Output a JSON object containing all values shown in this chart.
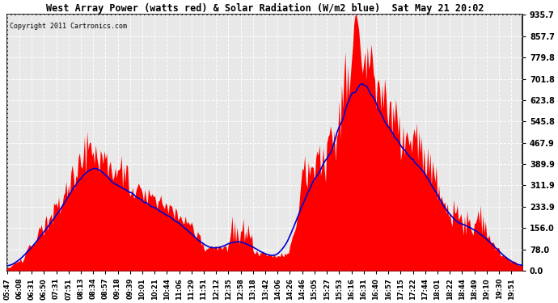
{
  "title": "West Array Power (watts red) & Solar Radiation (W/m2 blue)  Sat May 21 20:02",
  "copyright": "Copyright 2011 Cartronics.com",
  "ymax": 935.7,
  "yticks": [
    0.0,
    78.0,
    156.0,
    233.9,
    311.9,
    389.9,
    467.9,
    545.8,
    623.8,
    701.8,
    779.8,
    857.7,
    935.7
  ],
  "bg_color": "#ffffff",
  "plot_bg": "#ffffff",
  "red_color": "#ff0000",
  "blue_color": "#0000cc",
  "grid_color": "#aaaaaa",
  "xtick_labels": [
    "05:47",
    "06:08",
    "06:31",
    "06:50",
    "07:31",
    "07:51",
    "08:13",
    "08:34",
    "08:57",
    "09:18",
    "09:39",
    "10:01",
    "10:21",
    "10:44",
    "11:06",
    "11:29",
    "11:51",
    "12:12",
    "12:35",
    "12:58",
    "13:18",
    "13:42",
    "14:06",
    "14:26",
    "14:46",
    "15:05",
    "15:27",
    "15:53",
    "16:16",
    "16:31",
    "16:40",
    "16:57",
    "17:15",
    "17:22",
    "17:44",
    "18:01",
    "18:22",
    "18:44",
    "18:49",
    "19:10",
    "19:30",
    "19:51"
  ]
}
